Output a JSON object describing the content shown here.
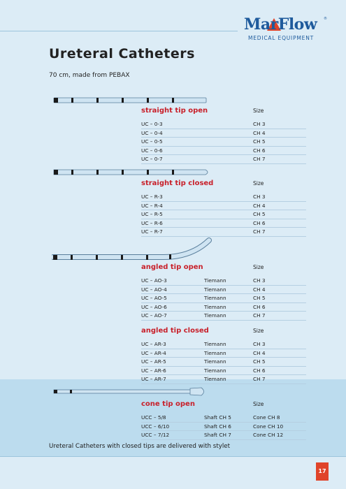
{
  "brand": {
    "name": "MarFlow",
    "tagline": "MEDICAL EQUIPMENT",
    "reg": "®"
  },
  "title": "Ureteral Catheters",
  "subtitle": "70 cm, made from PEBAX",
  "size_label": "Size",
  "sections": [
    {
      "title": "straight tip open",
      "rows": [
        [
          "UC – 0-3",
          "",
          "CH 3"
        ],
        [
          "UC – 0-4",
          "",
          "CH 4"
        ],
        [
          "UC – 0-5",
          "",
          "CH 5"
        ],
        [
          "UC – 0-6",
          "",
          "CH 6"
        ],
        [
          "UC – 0-7",
          "",
          "CH 7"
        ]
      ]
    },
    {
      "title": "straight tip closed",
      "rows": [
        [
          "UC – R-3",
          "",
          "CH 3"
        ],
        [
          "UC – R-4",
          "",
          "CH 4"
        ],
        [
          "UC – R-5",
          "",
          "CH 5"
        ],
        [
          "UC – R-6",
          "",
          "CH 6"
        ],
        [
          "UC – R-7",
          "",
          "CH 7"
        ]
      ]
    },
    {
      "title": "angled tip open",
      "rows": [
        [
          "UC – AO-3",
          "Tiemann",
          "CH 3"
        ],
        [
          "UC – AO-4",
          "Tiemann",
          "CH 4"
        ],
        [
          "UC – AO-5",
          "Tiemann",
          "CH 5"
        ],
        [
          "UC – AO-6",
          "Tiemann",
          "CH 6"
        ],
        [
          "UC – AO-7",
          "Tiemann",
          "CH 7"
        ]
      ]
    },
    {
      "title": "angled tip closed",
      "rows": [
        [
          "UC – AR-3",
          "Tiemann",
          "CH 3"
        ],
        [
          "UC – AR-4",
          "Tiemann",
          "CH 4"
        ],
        [
          "UC – AR-5",
          "Tiemann",
          "CH 5"
        ],
        [
          "UC – AR-6",
          "Tiemann",
          "CH 6"
        ],
        [
          "UC – AR-7",
          "Tiemann",
          "CH 7"
        ]
      ]
    },
    {
      "title": "cone tip open",
      "rows": [
        [
          "UCC – 5/8",
          "Shaft CH 5",
          "Cone CH 8"
        ],
        [
          "UCC – 6/10",
          "Shaft CH 6",
          "Cone CH 10"
        ],
        [
          "UCC – 7/12",
          "Shaft CH 7",
          "Cone CH 12"
        ]
      ]
    }
  ],
  "footer": "Ureteral Catheters with closed tips are delivered with stylet",
  "page_number": "17",
  "colors": {
    "accent_red": "#c8202a",
    "brand_blue": "#1e5a9c",
    "page_bg": "#dcecf6",
    "band_bg": "#bcdcee"
  }
}
